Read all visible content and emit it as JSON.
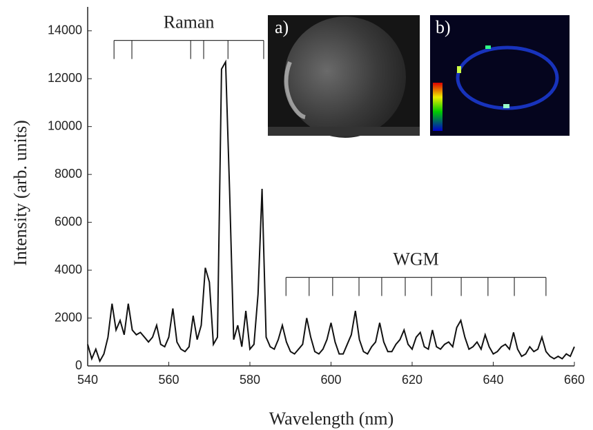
{
  "chart_data": {
    "type": "line",
    "x_label": "Wavelength (nm)",
    "y_label": "Intensity (arb. units)",
    "xlim": [
      540,
      660
    ],
    "xticks": [
      540,
      560,
      580,
      600,
      620,
      640,
      660
    ],
    "ylim": [
      0,
      15000
    ],
    "yticks": [
      0,
      2000,
      4000,
      6000,
      8000,
      10000,
      12000,
      14000
    ],
    "color": "#111111",
    "x": [
      540,
      541,
      542,
      543,
      544,
      545,
      546,
      547,
      548,
      549,
      550,
      551,
      552,
      553,
      554,
      555,
      556,
      557,
      558,
      559,
      560,
      561,
      562,
      563,
      564,
      565,
      566,
      567,
      568,
      569,
      570,
      571,
      572,
      573,
      574,
      575,
      576,
      577,
      578,
      579,
      580,
      581,
      582,
      583,
      584,
      585,
      586,
      587,
      588,
      589,
      590,
      591,
      592,
      593,
      594,
      595,
      596,
      597,
      598,
      599,
      600,
      601,
      602,
      603,
      604,
      605,
      606,
      607,
      608,
      609,
      610,
      611,
      612,
      613,
      614,
      615,
      616,
      617,
      618,
      619,
      620,
      621,
      622,
      623,
      624,
      625,
      626,
      627,
      628,
      629,
      630,
      631,
      632,
      633,
      634,
      635,
      636,
      637,
      638,
      639,
      640,
      641,
      642,
      643,
      644,
      645,
      646,
      647,
      648,
      649,
      650,
      651,
      652,
      653,
      654,
      655,
      656,
      657,
      658,
      659,
      660
    ],
    "values": [
      900,
      300,
      700,
      200,
      500,
      1200,
      2600,
      1500,
      1900,
      1300,
      2600,
      1500,
      1300,
      1400,
      1200,
      1000,
      1200,
      1700,
      900,
      800,
      1200,
      2400,
      1000,
      700,
      600,
      800,
      2100,
      1100,
      1700,
      4100,
      3500,
      900,
      1200,
      12400,
      12700,
      7300,
      1100,
      1700,
      800,
      2300,
      700,
      900,
      3000,
      7400,
      1200,
      800,
      700,
      1100,
      1700,
      1000,
      600,
      500,
      700,
      900,
      2000,
      1200,
      600,
      500,
      700,
      1100,
      1800,
      1000,
      500,
      500,
      900,
      1300,
      2300,
      1100,
      600,
      500,
      800,
      1000,
      1800,
      1000,
      600,
      600,
      900,
      1100,
      1500,
      900,
      700,
      1200,
      1400,
      800,
      700,
      1500,
      800,
      700,
      900,
      1000,
      800,
      1600,
      1900,
      1200,
      700,
      800,
      1000,
      700,
      1300,
      800,
      500,
      600,
      800,
      900,
      700,
      1400,
      700,
      400,
      500,
      800,
      600,
      700,
      1200,
      600,
      400,
      300,
      400,
      300,
      500,
      400,
      800
    ],
    "brackets": [
      {
        "label": "Raman",
        "level": 13600,
        "ticks": [
          546.5,
          550.9,
          565.4,
          568.6,
          574.6,
          583.4
        ]
      },
      {
        "label": "WGM",
        "level": 3700,
        "ticks": [
          588.9,
          594.6,
          600.4,
          606.9,
          612.5,
          618.3,
          624.8,
          632.1,
          638.7,
          645.2,
          653.0
        ]
      }
    ],
    "insets": [
      "a)",
      "b)"
    ]
  }
}
